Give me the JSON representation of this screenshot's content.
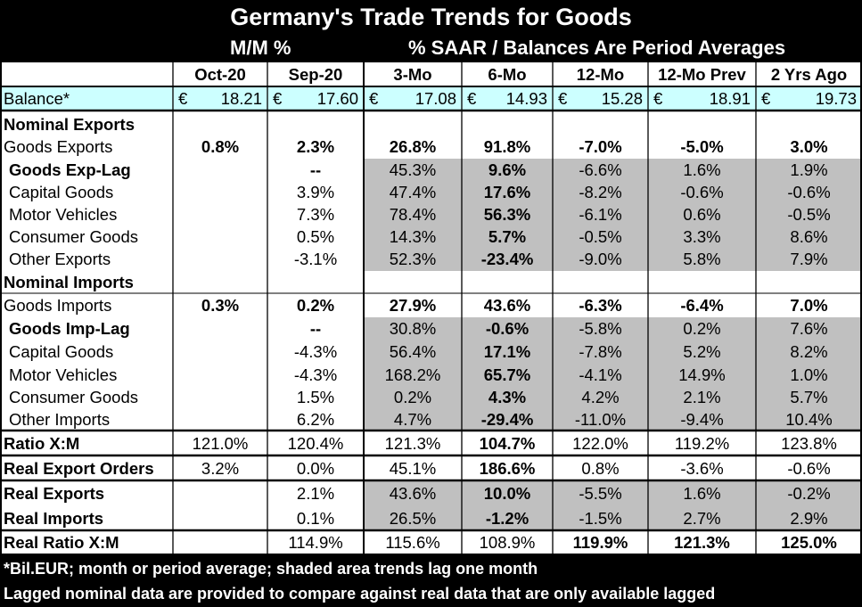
{
  "title": "Germany's Trade Trends for Goods",
  "subtitle_left": "M/M %",
  "subtitle_right": "% SAAR / Balances Are Period Averages",
  "columns": [
    "Oct-20",
    "Sep-20",
    "3-Mo",
    "6-Mo",
    "12-Mo",
    "12-Mo Prev",
    "2 Yrs Ago"
  ],
  "balance": {
    "label": "Balance*",
    "currency": "€",
    "values": [
      "18.21",
      "17.60",
      "17.08",
      "14.93",
      "15.28",
      "18.91",
      "19.73"
    ]
  },
  "rows": [
    {
      "label": "Nominal Exports",
      "bold": true,
      "indent": false,
      "values": [
        "",
        "",
        "",
        "",
        "",
        "",
        ""
      ],
      "bold_cells": []
    },
    {
      "label": "Goods Exports",
      "bold": false,
      "indent": false,
      "values": [
        "0.8%",
        "2.3%",
        "26.8%",
        "91.8%",
        "-7.0%",
        "-5.0%",
        "3.0%"
      ],
      "bold_cells": [
        0,
        1,
        2,
        3,
        4,
        5,
        6
      ]
    },
    {
      "label": "Goods Exp-Lag",
      "bold": true,
      "indent": true,
      "values": [
        "",
        "--",
        "45.3%",
        "9.6%",
        "-6.6%",
        "1.6%",
        "1.9%"
      ],
      "bold_cells": [
        1,
        3
      ]
    },
    {
      "label": "Capital Goods",
      "bold": false,
      "indent": true,
      "values": [
        "",
        "3.9%",
        "47.4%",
        "17.6%",
        "-8.2%",
        "-0.6%",
        "-0.6%"
      ],
      "bold_cells": [
        3
      ]
    },
    {
      "label": "Motor Vehicles",
      "bold": false,
      "indent": true,
      "values": [
        "",
        "7.3%",
        "78.4%",
        "56.3%",
        "-6.1%",
        "0.6%",
        "-0.5%"
      ],
      "bold_cells": [
        3
      ]
    },
    {
      "label": "Consumer Goods",
      "bold": false,
      "indent": true,
      "values": [
        "",
        "0.5%",
        "14.3%",
        "5.7%",
        "-0.5%",
        "3.3%",
        "8.6%"
      ],
      "bold_cells": [
        3
      ]
    },
    {
      "label": "Other Exports",
      "bold": false,
      "indent": true,
      "values": [
        "",
        "-3.1%",
        "52.3%",
        "-23.4%",
        "-9.0%",
        "5.8%",
        "7.9%"
      ],
      "bold_cells": [
        3
      ]
    },
    {
      "label": "Nominal Imports",
      "bold": true,
      "indent": false,
      "values": [
        "",
        "",
        "",
        "",
        "",
        "",
        ""
      ],
      "bold_cells": []
    },
    {
      "label": "Goods Imports",
      "bold": false,
      "indent": false,
      "values": [
        "0.3%",
        "0.2%",
        "27.9%",
        "43.6%",
        "-6.3%",
        "-6.4%",
        "7.0%"
      ],
      "bold_cells": [
        0,
        1,
        2,
        3,
        4,
        5,
        6
      ]
    },
    {
      "label": "Goods Imp-Lag",
      "bold": true,
      "indent": true,
      "values": [
        "",
        "--",
        "30.8%",
        "-0.6%",
        "-5.8%",
        "0.2%",
        "7.6%"
      ],
      "bold_cells": [
        1,
        3
      ]
    },
    {
      "label": "Capital Goods",
      "bold": false,
      "indent": true,
      "values": [
        "",
        "-4.3%",
        "56.4%",
        "17.1%",
        "-7.8%",
        "5.2%",
        "8.2%"
      ],
      "bold_cells": [
        3
      ]
    },
    {
      "label": "Motor Vehicles",
      "bold": false,
      "indent": true,
      "values": [
        "",
        "-4.3%",
        "168.2%",
        "65.7%",
        "-4.1%",
        "14.9%",
        "1.0%"
      ],
      "bold_cells": [
        3
      ]
    },
    {
      "label": "Consumer Goods",
      "bold": false,
      "indent": true,
      "values": [
        "",
        "1.5%",
        "0.2%",
        "4.3%",
        "4.2%",
        "2.1%",
        "5.7%"
      ],
      "bold_cells": [
        3
      ]
    },
    {
      "label": "Other Imports",
      "bold": false,
      "indent": true,
      "values": [
        "",
        "6.2%",
        "4.7%",
        "-29.4%",
        "-11.0%",
        "-9.4%",
        "10.4%"
      ],
      "bold_cells": [
        3
      ]
    },
    {
      "label": "Ratio X:M",
      "bold": true,
      "indent": false,
      "values": [
        "121.0%",
        "120.4%",
        "121.3%",
        "104.7%",
        "122.0%",
        "119.2%",
        "123.8%"
      ],
      "bold_cells": [
        3
      ]
    },
    {
      "label": "Real Export Orders",
      "bold": true,
      "indent": false,
      "values": [
        "3.2%",
        "0.0%",
        "45.1%",
        "186.6%",
        "0.8%",
        "-3.6%",
        "-0.6%"
      ],
      "bold_cells": [
        3
      ]
    },
    {
      "label": "Real Exports",
      "bold": true,
      "indent": false,
      "values": [
        "",
        "2.1%",
        "43.6%",
        "10.0%",
        "-5.5%",
        "1.6%",
        "-0.2%"
      ],
      "bold_cells": [
        3
      ]
    },
    {
      "label": "Real Imports",
      "bold": true,
      "indent": false,
      "values": [
        "",
        "0.1%",
        "26.5%",
        "-1.2%",
        "-1.5%",
        "2.7%",
        "2.9%"
      ],
      "bold_cells": [
        3
      ]
    },
    {
      "label": "Real Ratio X:M",
      "bold": true,
      "indent": false,
      "values": [
        "",
        "114.9%",
        "115.6%",
        "108.9%",
        "119.9%",
        "121.3%",
        "125.0%"
      ],
      "bold_cells": [
        4,
        5,
        6
      ]
    }
  ],
  "footnotes": [
    "*Bil.EUR; month or period average; shaded area trends lag one month",
    "Lagged nominal data are provided to compare against real data that are only available lagged"
  ],
  "colors": {
    "header_bg": "#000000",
    "header_text": "#ffffff",
    "balance_bg": "#ccffff",
    "shade": "#c0c0c0"
  }
}
